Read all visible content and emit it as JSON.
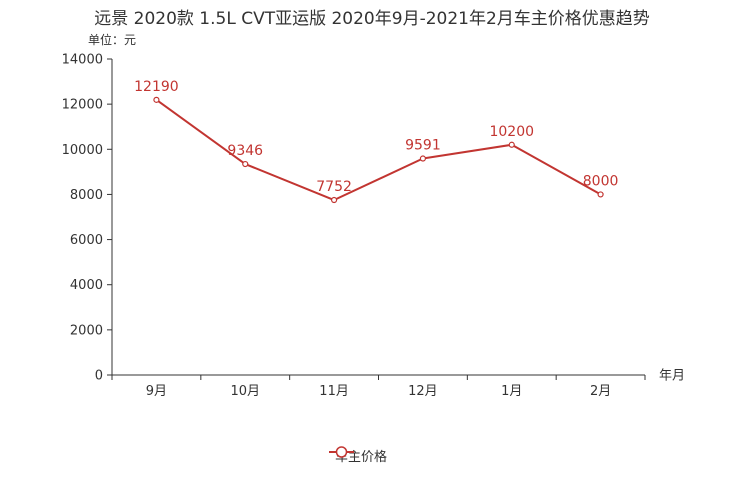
{
  "chart_data": {
    "type": "line",
    "title": "远景 2020款 1.5L CVT亚运版 2020年9月-2021年2月车主价格优惠趋势",
    "unit_label": "单位：元",
    "xlabel": "年月",
    "ylabel": "",
    "categories": [
      "9月",
      "10月",
      "11月",
      "12月",
      "1月",
      "2月"
    ],
    "series": [
      {
        "name": "车主价格",
        "values": [
          12190,
          9346,
          7752,
          9591,
          10200,
          8000
        ]
      }
    ],
    "ylim": [
      0,
      14000
    ],
    "yticks": [
      0,
      2000,
      4000,
      6000,
      8000,
      10000,
      12000,
      14000
    ],
    "grid": false,
    "legend_position": "bottom-center",
    "color": "#c23531"
  }
}
